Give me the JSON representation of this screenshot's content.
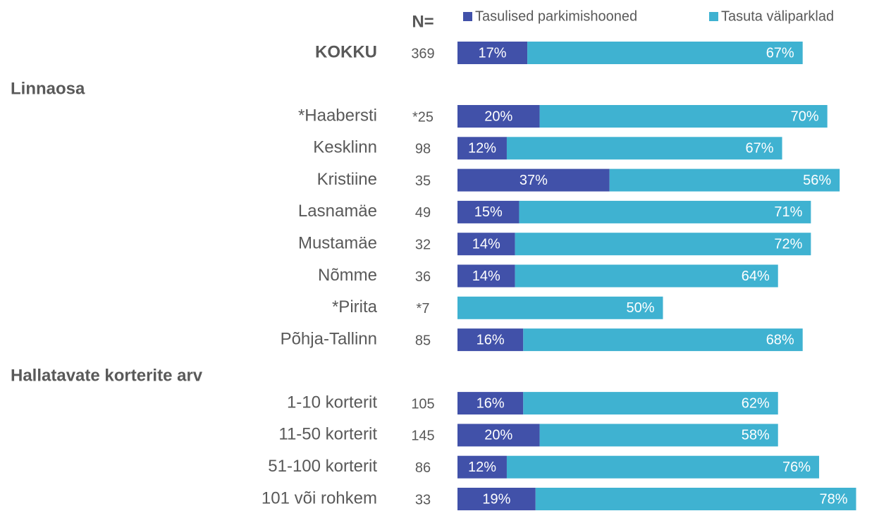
{
  "chart_data": {
    "type": "stacked_bar_horizontal",
    "n_header": "N=",
    "categories": [
      "KOKKU",
      "*Haabersti",
      "Kesklinn",
      "Kristiine",
      "Lasnamäe",
      "Mustamäe",
      "Nõmme",
      "*Pirita",
      "Põhja-Tallinn",
      "1-10 korterit",
      "11-50 korterit",
      "51-100 korterit",
      "101 või rohkem"
    ],
    "n_values": [
      "369",
      "*25",
      "98",
      "35",
      "49",
      "32",
      "36",
      "*7",
      "85",
      "105",
      "145",
      "86",
      "33"
    ],
    "groups": [
      {
        "label": "Linnaosa",
        "start": 1
      },
      {
        "label": "Hallatavate korterite arv",
        "start": 9
      }
    ],
    "series": [
      {
        "name": "Tasulised parkimishooned",
        "color": "#4151a9",
        "values": [
          17,
          20,
          12,
          37,
          15,
          14,
          14,
          null,
          16,
          16,
          20,
          12,
          19
        ],
        "value_labels": [
          "17%",
          "20%",
          "12%",
          "37%",
          "15%",
          "14%",
          "14%",
          null,
          "16%",
          "16%",
          "20%",
          "12%",
          "19%"
        ]
      },
      {
        "name": "Tasuta väliparklad",
        "color": "#3fb2d1",
        "values": [
          67,
          70,
          67,
          56,
          71,
          72,
          64,
          50,
          68,
          62,
          58,
          76,
          78
        ],
        "value_labels": [
          "67%",
          "70%",
          "67%",
          "56%",
          "71%",
          "72%",
          "64%",
          "50%",
          "68%",
          "62%",
          "58%",
          "76%",
          "78%"
        ]
      }
    ],
    "xlim": [
      0,
      100
    ]
  }
}
